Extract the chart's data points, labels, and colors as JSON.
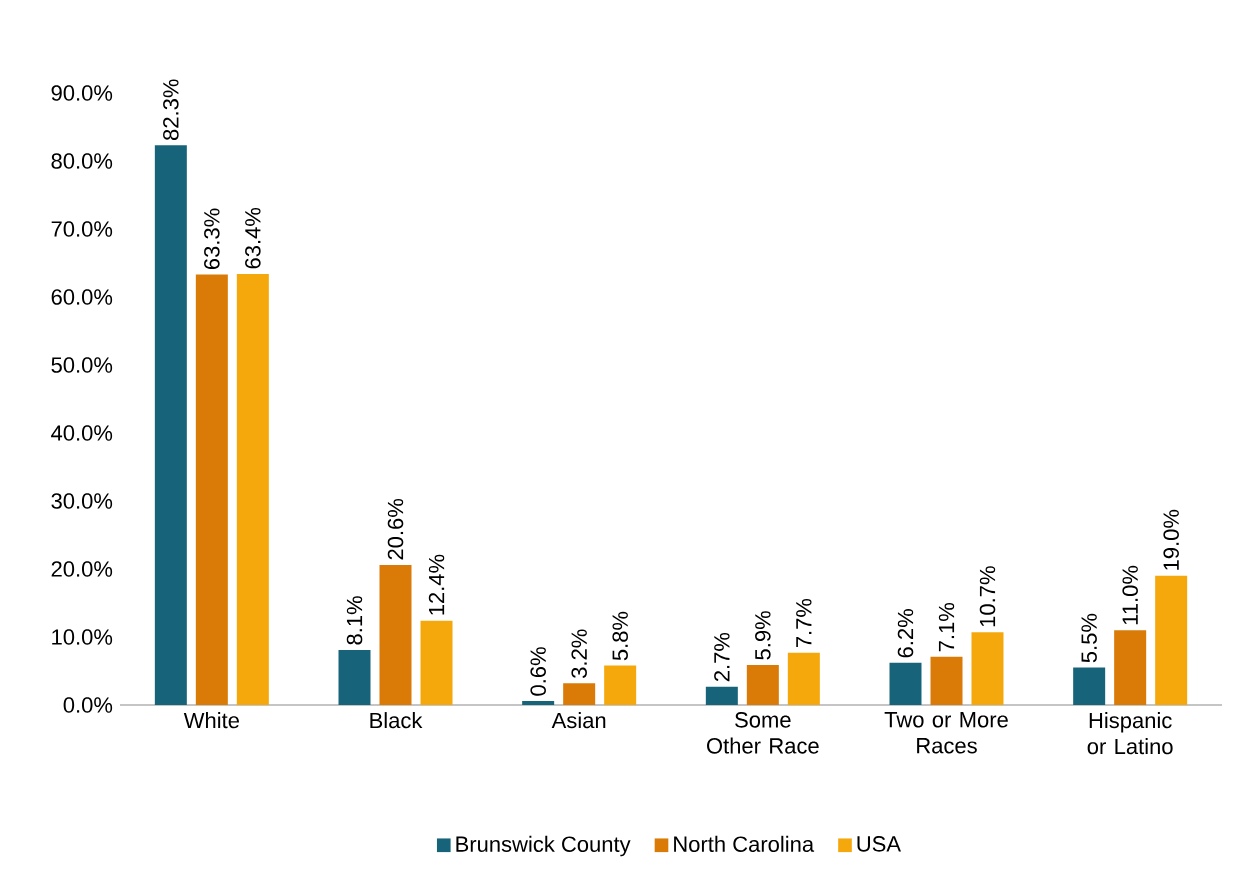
{
  "chart_data": {
    "type": "bar",
    "categories": [
      "White",
      "Black",
      "Asian",
      "Some Other Race",
      "Two or More Races",
      "Hispanic or Latino"
    ],
    "series": [
      {
        "name": "Brunswick County",
        "color": "#17647a",
        "values": [
          82.3,
          8.1,
          0.6,
          2.7,
          6.2,
          5.5
        ],
        "value_labels": [
          "82.3%",
          "8.1%",
          "0.6%",
          "2.7%",
          "6.2%",
          "5.5%"
        ]
      },
      {
        "name": "North Carolina",
        "color": "#d97b06",
        "values": [
          63.3,
          20.6,
          3.2,
          5.9,
          7.1,
          11.0
        ],
        "value_labels": [
          "63.3%",
          "20.6%",
          "3.2%",
          "5.9%",
          "7.1%",
          "11.0%"
        ]
      },
      {
        "name": "USA",
        "color": "#f5a80c",
        "values": [
          63.4,
          12.4,
          5.8,
          7.7,
          10.7,
          19.0
        ],
        "value_labels": [
          "63.4%",
          "12.4%",
          "5.8%",
          "7.7%",
          "10.7%",
          "19.0%"
        ]
      }
    ],
    "ylim": [
      0,
      90
    ],
    "yticks": [
      {
        "value": 0,
        "label": "0.0%"
      },
      {
        "value": 10,
        "label": "10.0%"
      },
      {
        "value": 20,
        "label": "20.0%"
      },
      {
        "value": 30,
        "label": "30.0%"
      },
      {
        "value": 40,
        "label": "40.0%"
      },
      {
        "value": 50,
        "label": "50.0%"
      },
      {
        "value": 60,
        "label": "60.0%"
      },
      {
        "value": 70,
        "label": "70.0%"
      },
      {
        "value": 80,
        "label": "80.0%"
      },
      {
        "value": 90,
        "label": "90.0%"
      }
    ],
    "grid": false,
    "legend": "bottom"
  }
}
